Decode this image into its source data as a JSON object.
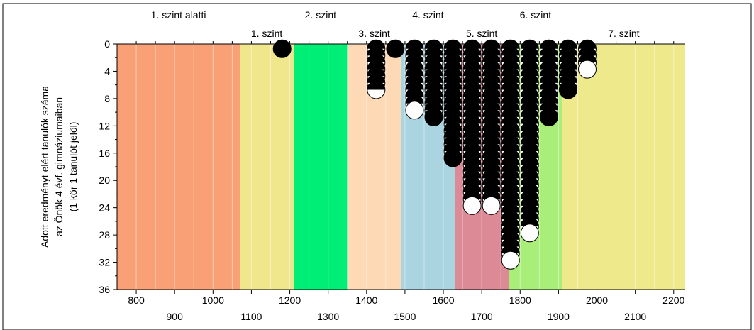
{
  "chart_data": {
    "type": "scatter",
    "ylabel_lines": [
      "Adott eredményt elért tanulók száma",
      "az Önök 4 évf. gimnáziumaiban",
      "(1 kör 1 tanulót jelöl)"
    ],
    "xlim": [
      750,
      2230
    ],
    "ylim": [
      0,
      36
    ],
    "y_inverted": true,
    "x_ticks_top_row": [
      800,
      1000,
      1200,
      1400,
      1600,
      1800,
      2000,
      2200
    ],
    "x_ticks_bottom_row": [
      900,
      1100,
      1300,
      1500,
      1700,
      1900,
      2100
    ],
    "y_ticks": [
      0,
      4,
      8,
      12,
      16,
      20,
      24,
      28,
      32,
      36
    ],
    "levels": [
      {
        "name": "1. szint alatti",
        "from": 750,
        "to": 1070,
        "color": "#f9a077",
        "label_row": "top"
      },
      {
        "name": "1. szint",
        "from": 1070,
        "to": 1210,
        "color": "#f0e68c",
        "label_row": "bottom"
      },
      {
        "name": "2. szint",
        "from": 1210,
        "to": 1350,
        "color": "#00ee76",
        "label_row": "top"
      },
      {
        "name": "3. szint",
        "from": 1350,
        "to": 1490,
        "color": "#fdd9b5",
        "label_row": "bottom"
      },
      {
        "name": "4. szint",
        "from": 1490,
        "to": 1630,
        "color": "#a9d4e0",
        "label_row": "top"
      },
      {
        "name": "5. szint",
        "from": 1630,
        "to": 1770,
        "color": "#dc8a96",
        "label_row": "bottom"
      },
      {
        "name": "6. szint",
        "from": 1770,
        "to": 1910,
        "color": "#a8ee78",
        "label_row": "top"
      },
      {
        "name": "7. szint",
        "from": 1910,
        "to": 2230,
        "color": "#eeea8c",
        "label_row": "bottom"
      }
    ],
    "columns": [
      {
        "x": 1180,
        "count": 1
      },
      {
        "x": 1425,
        "count": 7
      },
      {
        "x": 1475,
        "count": 1
      },
      {
        "x": 1525,
        "count": 10
      },
      {
        "x": 1575,
        "count": 11
      },
      {
        "x": 1625,
        "count": 17
      },
      {
        "x": 1675,
        "count": 24
      },
      {
        "x": 1725,
        "count": 24
      },
      {
        "x": 1775,
        "count": 32
      },
      {
        "x": 1825,
        "count": 28
      },
      {
        "x": 1875,
        "count": 11
      },
      {
        "x": 1925,
        "count": 7
      },
      {
        "x": 1975,
        "count": 4
      }
    ],
    "last_circle_style": {
      "1180": "black",
      "1425": "half",
      "1475": "black",
      "1525": "white",
      "1575": "black",
      "1625": "black",
      "1675": "white",
      "1725": "white",
      "1775": "white",
      "1825": "white",
      "1875": "black",
      "1925": "black",
      "1975": "white"
    },
    "grid": true
  }
}
